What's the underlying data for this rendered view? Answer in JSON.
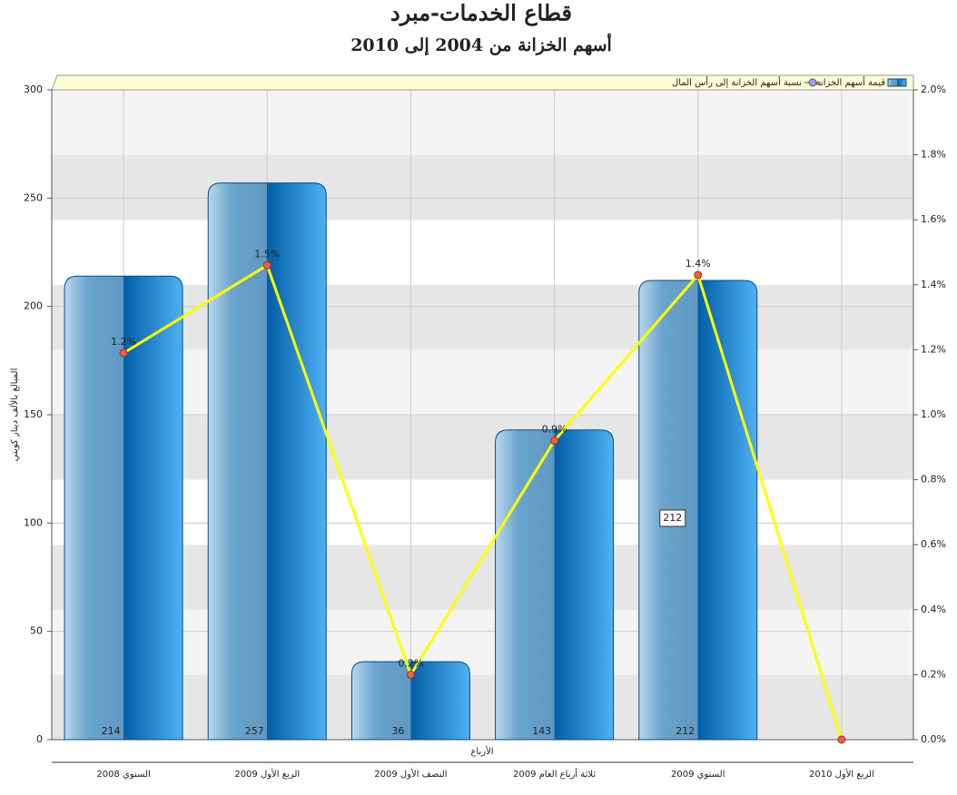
{
  "chart_data": {
    "type": "bar-line",
    "title": "قطاع الخدمات-مبرد",
    "subtitle": "أسهم الخزانة من 2004 إلى 2010",
    "y_label": "المبالغ بالألف دينار كويتي",
    "x_label": "الأرباع",
    "categories": [
      "السنوي 2008",
      "الربع الأول 2009",
      "النصف الأول 2009",
      "ثلاثة أرباع العام 2009",
      "السنوي 2009",
      "الربع الأول 2010"
    ],
    "series": [
      {
        "name": "قيمة أسهم الخزانة",
        "type": "bar",
        "color": "#1f78c1",
        "values": [
          214,
          257,
          36,
          143,
          212,
          null
        ]
      },
      {
        "name": "نسبة أسهم الخزانة إلى رأس المال",
        "type": "line",
        "axis": "y2",
        "color": "#ffff00",
        "marker_color": "#f06040",
        "values": [
          1.19,
          1.46,
          0.2,
          0.92,
          1.43,
          0
        ],
        "value_labels": [
          "1.2%",
          "1.5%",
          "0.2%",
          "0.9%",
          "1.4%",
          null
        ]
      }
    ],
    "ylim": [
      0,
      300
    ],
    "yticks": [
      0,
      50,
      100,
      150,
      200,
      250,
      300
    ],
    "y2lim": [
      0,
      2
    ],
    "y2ticks": [
      {
        "value": 0,
        "label": "0.0%"
      },
      {
        "value": 0.2,
        "label": "0.2%"
      },
      {
        "value": 0.4,
        "label": "0.4%"
      },
      {
        "value": 0.6,
        "label": "0.6%"
      },
      {
        "value": 0.8,
        "label": "0.8%"
      },
      {
        "value": 1.0,
        "label": "1.0%"
      },
      {
        "value": 1.2,
        "label": "1.2%"
      },
      {
        "value": 1.4,
        "label": "1.4%"
      },
      {
        "value": 1.6,
        "label": "1.6%"
      },
      {
        "value": 1.8,
        "label": "1.8%"
      },
      {
        "value": 2.0,
        "label": "2.0%"
      }
    ],
    "grid": true,
    "legend": "top"
  }
}
